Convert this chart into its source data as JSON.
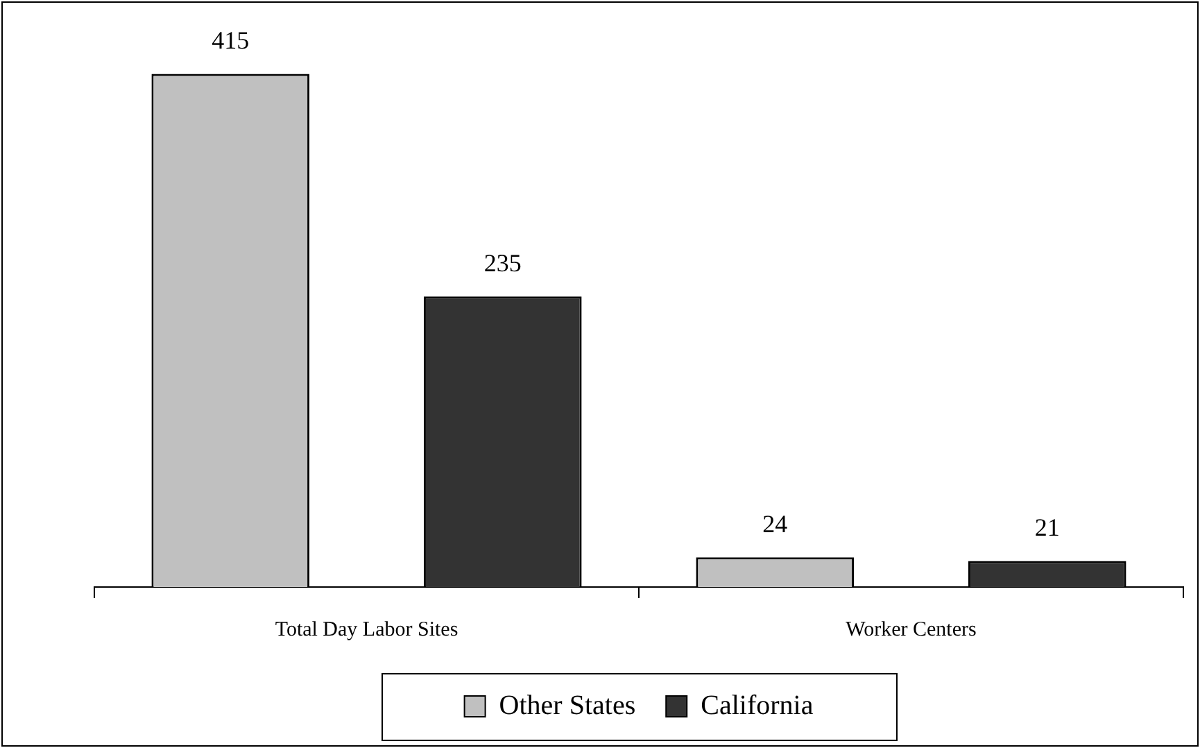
{
  "chart_data": {
    "type": "bar",
    "categories": [
      "Total Day Labor Sites",
      "Worker Centers"
    ],
    "series": [
      {
        "name": "Other States",
        "color": "#c0c0c0",
        "values": [
          415,
          24
        ]
      },
      {
        "name": "California",
        "color": "#333333",
        "values": [
          235,
          21
        ]
      }
    ],
    "data_labels": true,
    "legend": "bottom",
    "grid": false
  }
}
